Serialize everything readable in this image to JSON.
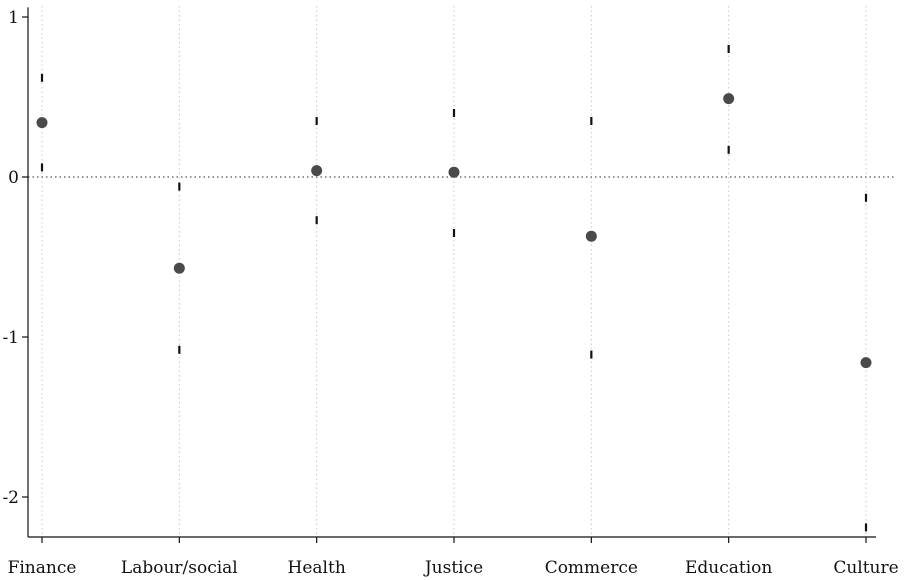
{
  "chart_data": {
    "type": "scatter",
    "categories": [
      "Finance",
      "Labour/social",
      "Health",
      "Justice",
      "Commerce",
      "Education",
      "Culture"
    ],
    "series": [
      {
        "values": [
          0.34,
          -0.57,
          0.04,
          0.03,
          -0.37,
          0.49,
          -1.16
        ],
        "ci_upper": [
          0.62,
          -0.06,
          0.35,
          0.4,
          0.35,
          0.8,
          -0.13
        ],
        "ci_lower": [
          0.06,
          -1.08,
          -0.27,
          -0.35,
          -1.11,
          0.17,
          -2.19
        ]
      }
    ],
    "y_ticks": [
      1,
      0,
      -1,
      -2
    ],
    "y_tick_labels": [
      "1",
      "0",
      "-1",
      "-2"
    ],
    "ylim": [
      -2.25,
      1.06
    ],
    "title": "",
    "xlabel": "",
    "ylabel": "",
    "grid": "vertical dotted lines at each category",
    "reference_line": 0,
    "colors": {
      "point": "#4a4a4a",
      "ci": "#111111",
      "grid": "#c8c8c8",
      "axis": "#111111"
    }
  }
}
